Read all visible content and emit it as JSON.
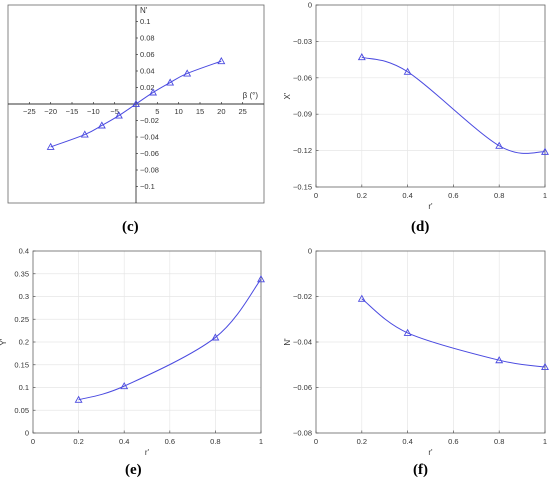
{
  "colors": {
    "series": "#4a4ae0",
    "frame": "#666666",
    "grid": "#e6e6e6"
  },
  "chart_data": [
    {
      "panel": "(c)",
      "type": "line",
      "layout": "crossed-axes",
      "xlabel": "β (°)",
      "ylabel": "N'",
      "xlim": [
        -30,
        30
      ],
      "ylim": [
        -0.12,
        0.12
      ],
      "xticks": [
        -25,
        -20,
        -15,
        -10,
        -5,
        5,
        10,
        15,
        20,
        25
      ],
      "yticks": [
        -0.1,
        -0.08,
        -0.06,
        -0.04,
        -0.02,
        0.02,
        0.04,
        0.06,
        0.08,
        0.1
      ],
      "tick_labels_x": [
        "−25",
        "−20",
        "−15",
        "−10",
        "−5",
        "5",
        "10",
        "15",
        "20",
        "25"
      ],
      "tick_labels_y": [
        "−0.1",
        "−0.08",
        "−0.06",
        "−0.04",
        "−0.02",
        "0.02",
        "0.04",
        "0.06",
        "0.08",
        "0.1"
      ],
      "grid": false,
      "marker": "triangle",
      "x": [
        -20,
        -12,
        -8,
        -4,
        0,
        4,
        8,
        12,
        20
      ],
      "y": [
        -0.052,
        -0.037,
        -0.026,
        -0.014,
        0.0,
        0.014,
        0.026,
        0.037,
        0.052
      ]
    },
    {
      "panel": "(d)",
      "type": "line",
      "xlabel": "r'",
      "ylabel": "X'",
      "xlim": [
        0,
        1
      ],
      "ylim": [
        -0.15,
        0
      ],
      "xticks": [
        0,
        0.2,
        0.4,
        0.6,
        0.8,
        1
      ],
      "yticks": [
        -0.15,
        -0.12,
        -0.09,
        -0.06,
        -0.03,
        0
      ],
      "tick_labels_x": [
        "0",
        "0.2",
        "0.4",
        "0.6",
        "0.8",
        "1"
      ],
      "tick_labels_y": [
        "−0.15",
        "−0.12",
        "−0.09",
        "−0.06",
        "−0.03",
        "0"
      ],
      "grid": true,
      "marker": "triangle",
      "x": [
        0.2,
        0.4,
        0.8,
        1.0
      ],
      "y": [
        -0.043,
        -0.055,
        -0.116,
        -0.121
      ]
    },
    {
      "panel": "(e)",
      "type": "line",
      "xlabel": "r'",
      "ylabel": "Y'",
      "xlim": [
        0,
        1
      ],
      "ylim": [
        0,
        0.4
      ],
      "xticks": [
        0,
        0.2,
        0.4,
        0.6,
        0.8,
        1
      ],
      "yticks": [
        0,
        0.05,
        0.1,
        0.15,
        0.2,
        0.25,
        0.3,
        0.35,
        0.4
      ],
      "tick_labels_x": [
        "0",
        "0.2",
        "0.4",
        "0.6",
        "0.8",
        "1"
      ],
      "tick_labels_y": [
        "0",
        "0.05",
        "0.1",
        "0.15",
        "0.2",
        "0.25",
        "0.3",
        "0.35",
        "0.4"
      ],
      "grid": true,
      "marker": "triangle",
      "x": [
        0.2,
        0.4,
        0.8,
        1.0
      ],
      "y": [
        0.073,
        0.103,
        0.21,
        0.338
      ]
    },
    {
      "panel": "(f)",
      "type": "line",
      "xlabel": "r'",
      "ylabel": "N'",
      "xlim": [
        0,
        1
      ],
      "ylim": [
        -0.08,
        0
      ],
      "xticks": [
        0,
        0.2,
        0.4,
        0.6,
        0.8,
        1
      ],
      "yticks": [
        -0.08,
        -0.06,
        -0.04,
        -0.02,
        0
      ],
      "tick_labels_x": [
        "0",
        "0.2",
        "0.4",
        "0.6",
        "0.8",
        "1"
      ],
      "tick_labels_y": [
        "−0.08",
        "−0.06",
        "−0.04",
        "−0.02",
        "0"
      ],
      "grid": true,
      "marker": "triangle",
      "x": [
        0.2,
        0.4,
        0.8,
        1.0
      ],
      "y": [
        -0.021,
        -0.036,
        -0.048,
        -0.051
      ]
    }
  ]
}
